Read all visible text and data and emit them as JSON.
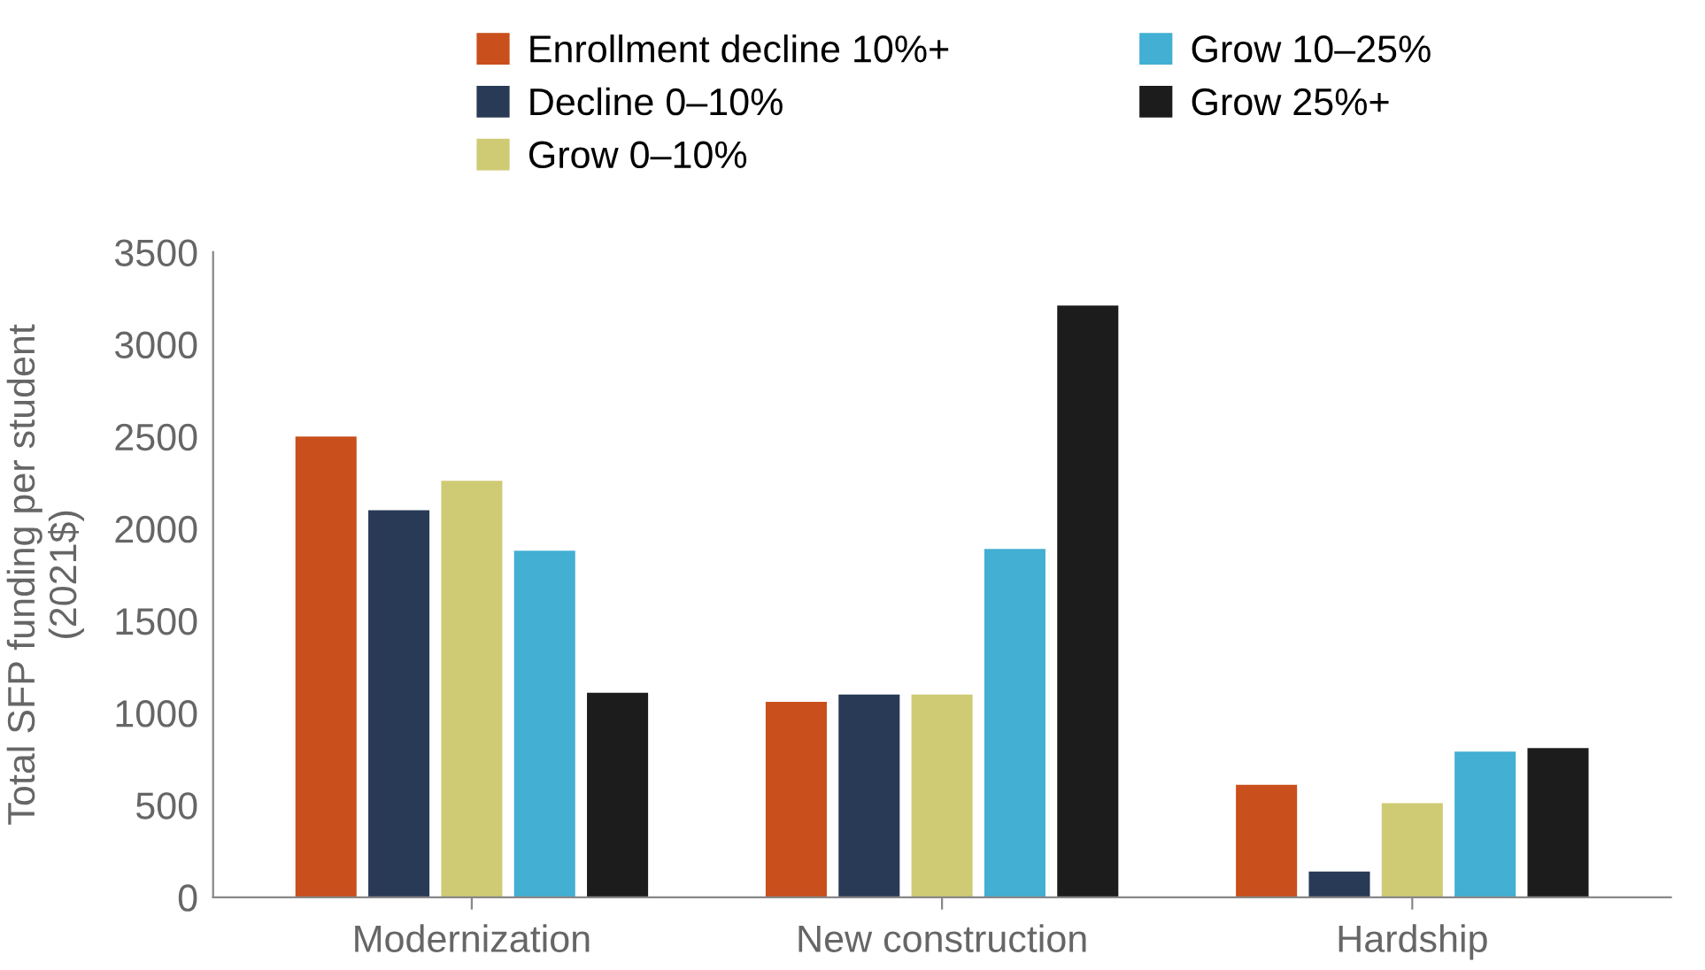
{
  "chart_data": {
    "type": "bar",
    "ylabel": "Total SFP funding per student\n(2021$)",
    "categories": [
      "Modernization",
      "New construction",
      "Hardship"
    ],
    "series": [
      {
        "name": "Enrollment decline 10%+",
        "color": "#c94f1c",
        "values": [
          2500,
          1060,
          610
        ]
      },
      {
        "name": "Decline 0–10%",
        "color": "#283a56",
        "values": [
          2100,
          1100,
          140
        ]
      },
      {
        "name": "Grow 0–10%",
        "color": "#cfcb74",
        "values": [
          2260,
          1100,
          510
        ]
      },
      {
        "name": "Grow 10–25%",
        "color": "#42afd3",
        "values": [
          1880,
          1890,
          790
        ]
      },
      {
        "name": "Grow 25%+",
        "color": "#1c1c1c",
        "values": [
          1110,
          3210,
          810
        ]
      }
    ],
    "ylim": [
      0,
      3500
    ],
    "yticks": [
      0,
      500,
      1000,
      1500,
      2000,
      2500,
      3000,
      3500
    ],
    "grid": false,
    "legend": "top"
  }
}
